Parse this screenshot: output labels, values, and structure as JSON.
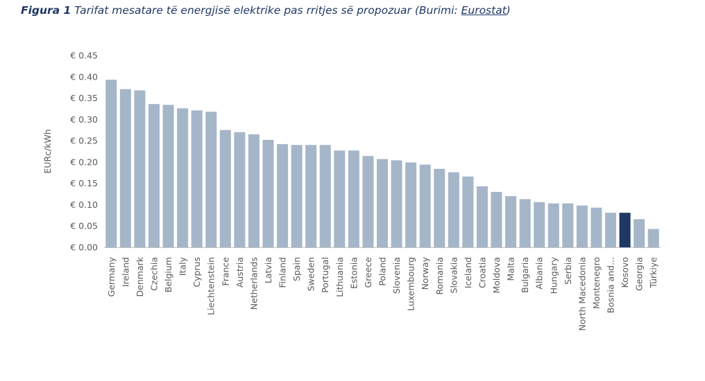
{
  "caption": {
    "figure_label": "Figura 1",
    "text": "Tarifat mesatare të energjisë elektrike pas rritjes së propozuar (Burimi: ",
    "source_link": "Eurostat",
    "closing": ")"
  },
  "chart_data": {
    "type": "bar",
    "ylabel": "EURc/kWh",
    "ylim": [
      0,
      0.45
    ],
    "y_ticks": [
      {
        "value": 0.0,
        "label": "€ 0.00"
      },
      {
        "value": 0.05,
        "label": "€ 0.05"
      },
      {
        "value": 0.1,
        "label": "€ 0.10"
      },
      {
        "value": 0.15,
        "label": "€ 0.15"
      },
      {
        "value": 0.2,
        "label": "€ 0.20"
      },
      {
        "value": 0.25,
        "label": "€ 0.25"
      },
      {
        "value": 0.3,
        "label": "€ 0.30"
      },
      {
        "value": 0.35,
        "label": "€ 0.35"
      },
      {
        "value": 0.4,
        "label": "€ 0.40"
      },
      {
        "value": 0.45,
        "label": "€ 0.45"
      }
    ],
    "grid": false,
    "categories": [
      "Germany",
      "Ireland",
      "Denmark",
      "Czechia",
      "Belgium",
      "Italy",
      "Cyprus",
      "Liechtenstein",
      "France",
      "Austria",
      "Netherlands",
      "Latvia",
      "Finland",
      "Spain",
      "Sweden",
      "Portugal",
      "Lithuania",
      "Estonia",
      "Greece",
      "Poland",
      "Slovenia",
      "Luxembourg",
      "Norway",
      "Romania",
      "Slovakia",
      "Iceland",
      "Croatia",
      "Moldova",
      "Malta",
      "Bulgaria",
      "Albania",
      "Hungary",
      "Serbia",
      "North Macedonia",
      "Montenegro",
      "Bosnia and...",
      "Kosovo",
      "Georgia",
      "Türkiye"
    ],
    "values": [
      0.393,
      0.371,
      0.368,
      0.336,
      0.334,
      0.326,
      0.321,
      0.318,
      0.275,
      0.27,
      0.265,
      0.252,
      0.242,
      0.24,
      0.24,
      0.24,
      0.227,
      0.227,
      0.214,
      0.207,
      0.204,
      0.199,
      0.194,
      0.184,
      0.176,
      0.166,
      0.143,
      0.13,
      0.12,
      0.113,
      0.106,
      0.103,
      0.103,
      0.098,
      0.093,
      0.081,
      0.081,
      0.066,
      0.043
    ],
    "highlight_category": "Kosovo",
    "colors": {
      "bar": "#a6b6c9",
      "highlight": "#1f3864",
      "axis": "#bfbfbf",
      "text": "#595959"
    }
  }
}
